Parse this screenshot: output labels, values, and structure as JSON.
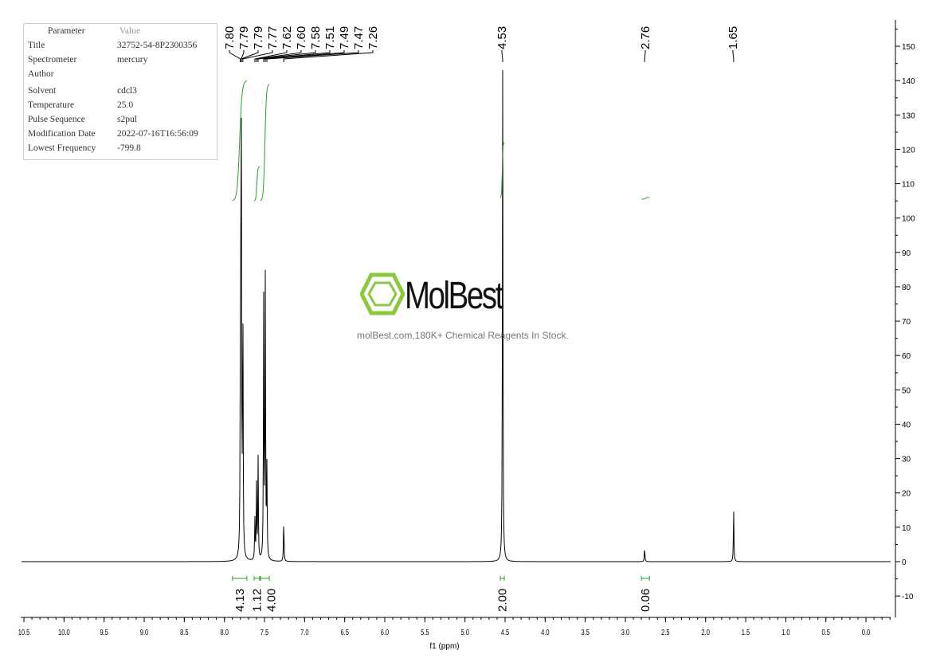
{
  "parameters": {
    "header": [
      "Parameter",
      "Value"
    ],
    "rows": [
      [
        "Title",
        "32752-54-8P2300356"
      ],
      [
        "Spectrometer",
        "mercury"
      ],
      [
        "Author",
        ""
      ],
      [
        "Solvent",
        "cdcl3"
      ],
      [
        "Temperature",
        "25.0"
      ],
      [
        "Pulse Sequence",
        "s2pul"
      ],
      [
        "Modification Date",
        "2022-07-16T16:56:09"
      ],
      [
        "Lowest Frequency",
        "-799.8"
      ]
    ]
  },
  "watermark": {
    "brand": "MolBest",
    "tagline": "molBest.com,180K+ Chemical Reagents In Stock.",
    "color": "#8dc63f"
  },
  "chart_data": {
    "type": "line",
    "xlabel": "f1 (ppm)",
    "xlim": [
      10.5,
      -0.3
    ],
    "ylim": [
      -15,
      155
    ],
    "x_ticks": [
      "10.5",
      "10.0",
      "9.5",
      "9.0",
      "8.5",
      "8.0",
      "7.5",
      "7.0",
      "6.5",
      "6.0",
      "5.5",
      "5.0",
      "4.5",
      "4.0",
      "3.5",
      "3.0",
      "2.5",
      "2.0",
      "1.5",
      "1.0",
      "0.5",
      "0.0"
    ],
    "y_ticks": [
      -10,
      0,
      10,
      20,
      30,
      40,
      50,
      60,
      70,
      80,
      90,
      100,
      110,
      120,
      130,
      140,
      150
    ],
    "spectrum_color": "#000000",
    "integral_color": "#2ca02c",
    "peaks": [
      {
        "ppm": 7.8,
        "height": 64
      },
      {
        "ppm": 7.79,
        "height": 84
      },
      {
        "ppm": 7.79,
        "height": 60
      },
      {
        "ppm": 7.77,
        "height": 75
      },
      {
        "ppm": 7.62,
        "height": 12
      },
      {
        "ppm": 7.6,
        "height": 22
      },
      {
        "ppm": 7.58,
        "height": 30
      },
      {
        "ppm": 7.51,
        "height": 75
      },
      {
        "ppm": 7.49,
        "height": 81
      },
      {
        "ppm": 7.47,
        "height": 26
      },
      {
        "ppm": 7.26,
        "height": 12
      },
      {
        "ppm": 4.53,
        "height": 143
      },
      {
        "ppm": 2.76,
        "height": 4
      },
      {
        "ppm": 1.65,
        "height": 15
      }
    ],
    "peak_labels": [
      "7.80",
      "7.79",
      "7.79",
      "7.77",
      "7.62",
      "7.60",
      "7.58",
      "7.51",
      "7.49",
      "7.47",
      "7.26",
      "4.53",
      "2.76",
      "1.65"
    ],
    "integrals": [
      {
        "from": 7.9,
        "to": 7.72,
        "value": "4.13",
        "y0": 105,
        "y1": 140
      },
      {
        "from": 7.63,
        "to": 7.56,
        "value": "1.12",
        "y0": 105,
        "y1": 115
      },
      {
        "from": 7.55,
        "to": 7.44,
        "value": "4.00",
        "y0": 105,
        "y1": 139
      },
      {
        "from": 4.56,
        "to": 4.51,
        "value": "2.00",
        "y0": 106,
        "y1": 122
      },
      {
        "from": 2.8,
        "to": 2.7,
        "value": "0.06",
        "y0": 105.5,
        "y1": 106
      }
    ]
  }
}
